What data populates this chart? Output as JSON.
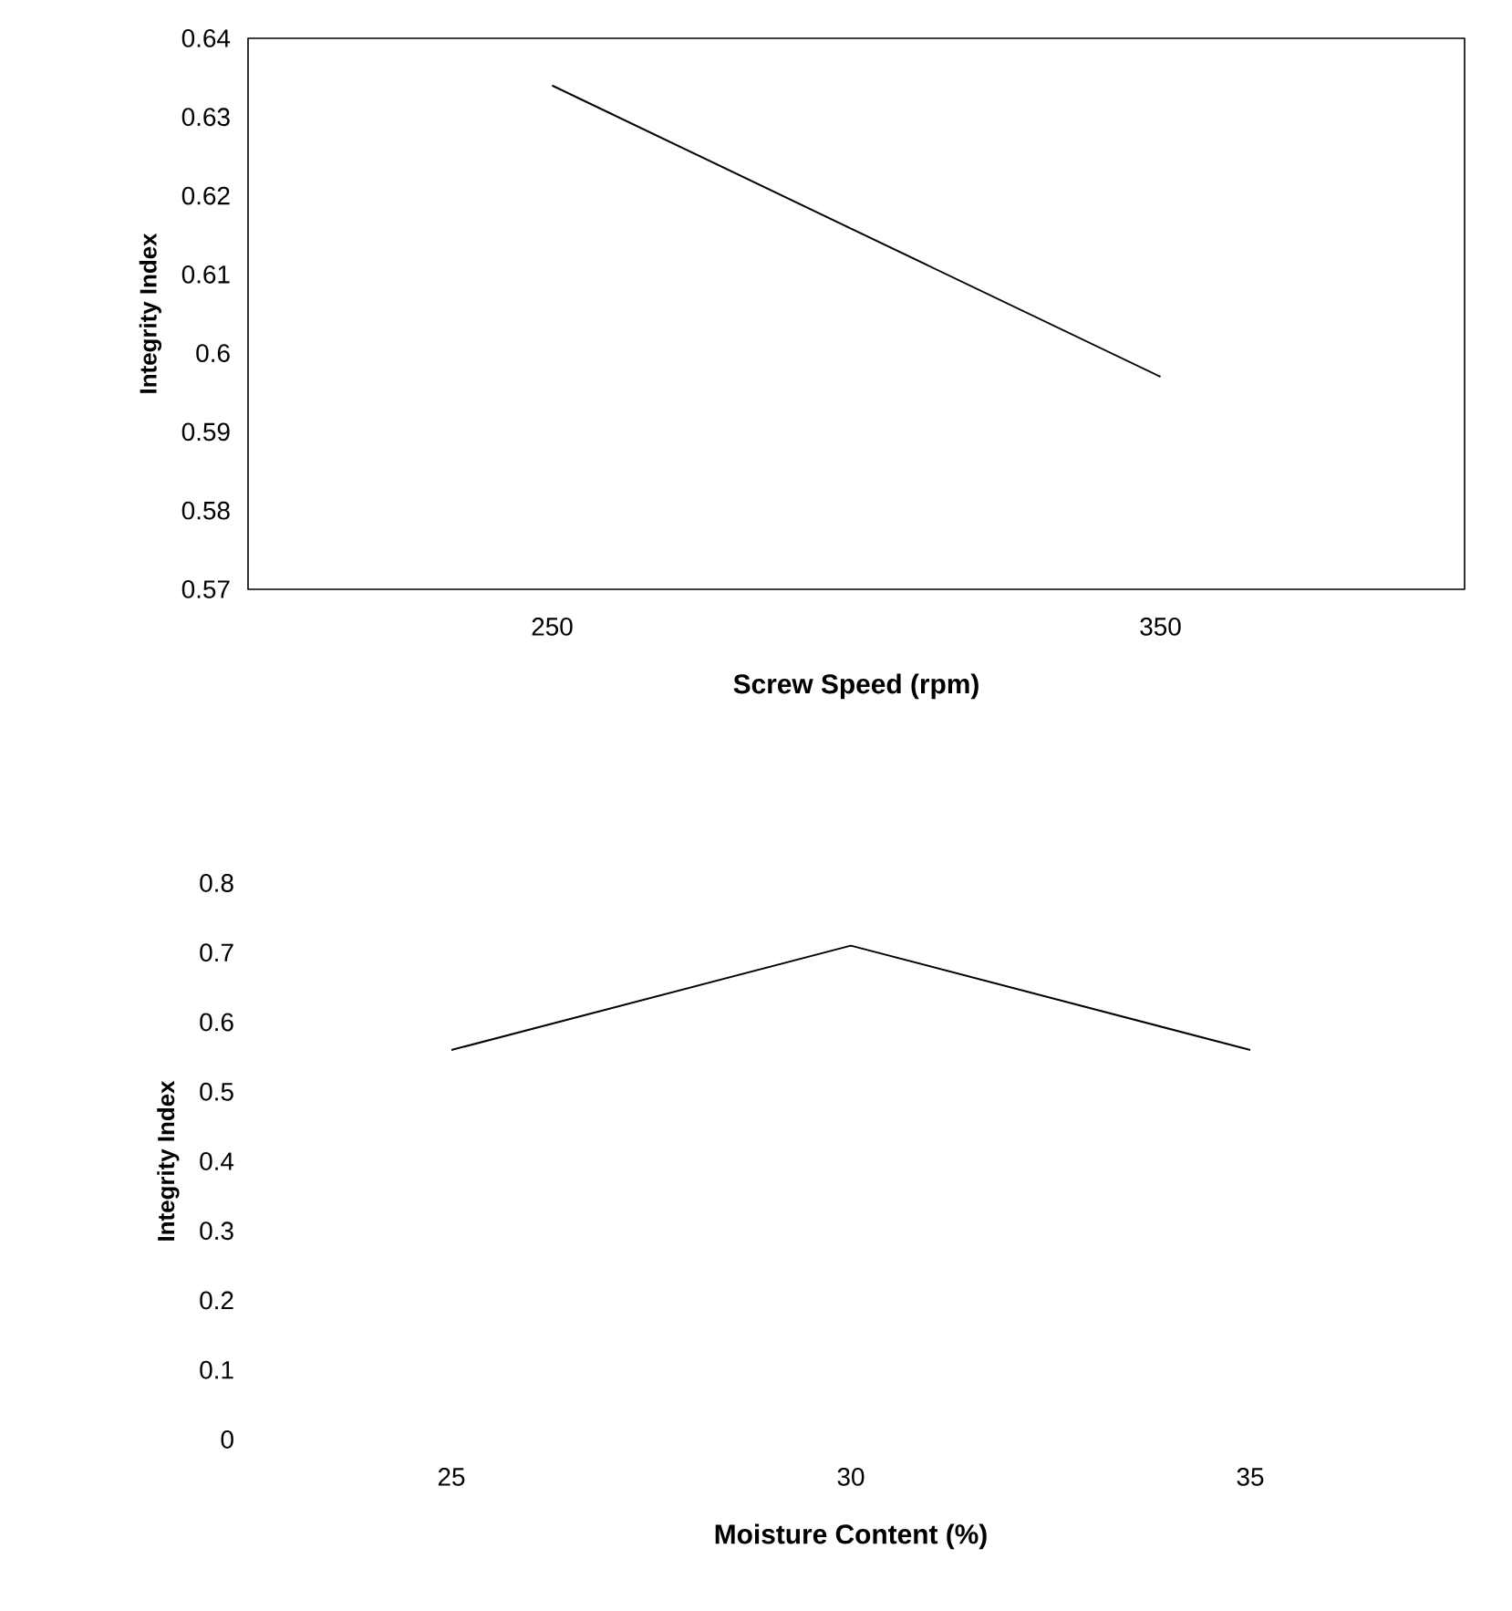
{
  "chart_data": [
    {
      "type": "line",
      "xlabel": "Screw Speed (rpm)",
      "ylabel": "Integrity Index",
      "categories": [
        "250",
        "350"
      ],
      "values": [
        0.634,
        0.597
      ],
      "color": "#000000",
      "ylim": [
        0.57,
        0.64
      ],
      "yticks": [
        0.57,
        0.58,
        0.59,
        0.6,
        0.61,
        0.62,
        0.63,
        0.64
      ]
    },
    {
      "type": "line",
      "xlabel": "Moisture Content (%)",
      "ylabel": "Integrity Index",
      "categories": [
        "25",
        "30",
        "35"
      ],
      "values": [
        0.56,
        0.71,
        0.56
      ],
      "color": "#000000",
      "ylim": [
        0,
        0.8
      ],
      "yticks": [
        0,
        0.1,
        0.2,
        0.3,
        0.4,
        0.5,
        0.6,
        0.7,
        0.8
      ]
    }
  ]
}
